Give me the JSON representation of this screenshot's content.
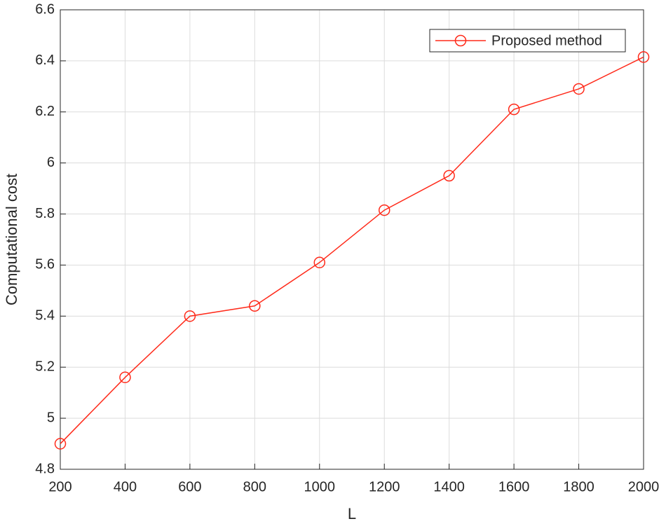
{
  "chart_data": {
    "type": "line",
    "xlabel": "L",
    "ylabel": "Computational cost",
    "x": [
      200,
      400,
      600,
      800,
      1000,
      1200,
      1400,
      1600,
      1800,
      2000
    ],
    "series": [
      {
        "name": "Proposed method",
        "color": "#ff2a1a",
        "values": [
          4.9,
          5.16,
          5.4,
          5.44,
          5.61,
          5.815,
          5.95,
          6.21,
          6.29,
          6.415
        ]
      }
    ],
    "xlim": [
      200,
      2000
    ],
    "xticks": [
      200,
      400,
      600,
      800,
      1000,
      1200,
      1400,
      1600,
      1800,
      2000
    ],
    "ylim": [
      4.8,
      6.6
    ],
    "yticks": [
      4.8,
      5,
      5.2,
      5.4,
      5.6,
      5.8,
      6,
      6.2,
      6.4,
      6.6
    ],
    "grid": true,
    "legend": "upper right"
  }
}
